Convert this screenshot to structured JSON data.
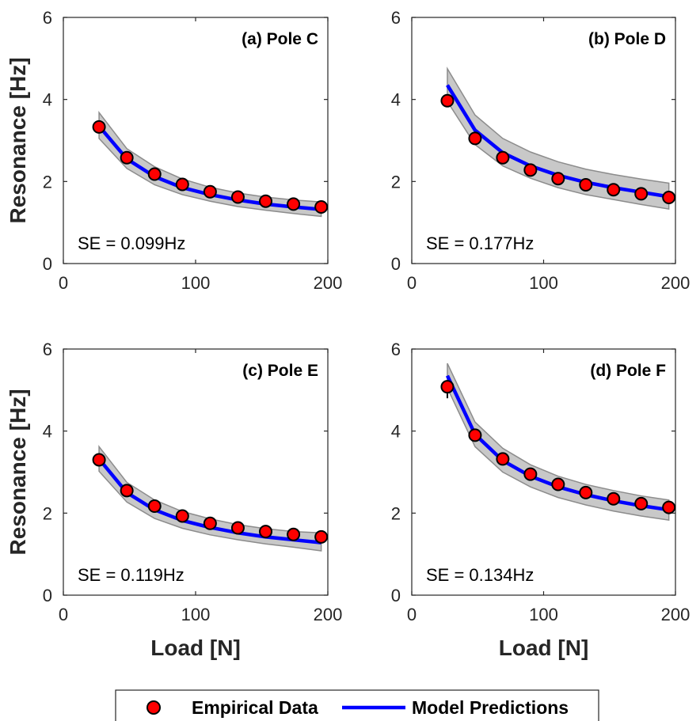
{
  "colors": {
    "empirical_marker": "#ff0000",
    "marker_edge": "#000000",
    "model_line": "#0000ff",
    "band_fill": "#c8c8c8",
    "band_edge": "#8c8c8c"
  },
  "legend": {
    "empirical_label": "Empirical Data",
    "model_label": "Model Predictions",
    "placement": "bottom-center"
  },
  "chart_data": [
    {
      "type": "line",
      "title": "(a) Pole C",
      "annotation": "SE = 0.099Hz",
      "xlabel": "",
      "ylabel": "Resonance [Hz]",
      "xlim": [
        0,
        200
      ],
      "ylim": [
        0,
        6
      ],
      "xticks": [
        "0",
        "100",
        "200"
      ],
      "yticks": [
        "0",
        "2",
        "4",
        "6"
      ],
      "series": [
        {
          "name": "Empirical Data",
          "kind": "markers",
          "x": [
            27,
            48,
            69,
            90,
            111,
            132,
            153,
            174,
            195
          ],
          "y": [
            3.33,
            2.58,
            2.18,
            1.93,
            1.75,
            1.62,
            1.52,
            1.45,
            1.38
          ]
        },
        {
          "name": "Model Predictions",
          "kind": "line",
          "x": [
            27,
            48,
            69,
            90,
            111,
            132,
            153,
            174,
            195
          ],
          "y": [
            3.35,
            2.55,
            2.12,
            1.85,
            1.68,
            1.55,
            1.45,
            1.38,
            1.32
          ],
          "lower": [
            3.05,
            2.32,
            1.92,
            1.68,
            1.52,
            1.39,
            1.3,
            1.22,
            1.15
          ],
          "upper": [
            3.68,
            2.8,
            2.36,
            2.06,
            1.86,
            1.72,
            1.62,
            1.55,
            1.5
          ]
        }
      ]
    },
    {
      "type": "line",
      "title": "(b) Pole D",
      "annotation": "SE = 0.177Hz",
      "xlabel": "",
      "ylabel": "",
      "xlim": [
        0,
        200
      ],
      "ylim": [
        0,
        6
      ],
      "xticks": [
        "0",
        "100",
        "200"
      ],
      "yticks": [
        "0",
        "2",
        "4",
        "6"
      ],
      "series": [
        {
          "name": "Empirical Data",
          "kind": "markers",
          "x": [
            27,
            48,
            69,
            90,
            111,
            132,
            153,
            174,
            195
          ],
          "y": [
            3.97,
            3.05,
            2.58,
            2.28,
            2.07,
            1.92,
            1.8,
            1.7,
            1.61
          ]
        },
        {
          "name": "Model Predictions",
          "kind": "line",
          "x": [
            27,
            48,
            69,
            90,
            111,
            132,
            153,
            174,
            195
          ],
          "y": [
            4.35,
            3.25,
            2.7,
            2.38,
            2.15,
            1.98,
            1.85,
            1.74,
            1.63
          ],
          "lower": [
            3.95,
            2.9,
            2.38,
            2.08,
            1.85,
            1.68,
            1.56,
            1.44,
            1.33
          ],
          "upper": [
            4.75,
            3.62,
            3.05,
            2.72,
            2.48,
            2.3,
            2.17,
            2.06,
            1.96
          ]
        }
      ]
    },
    {
      "type": "line",
      "title": "(c) Pole E",
      "annotation": "SE = 0.119Hz",
      "xlabel": "Load [N]",
      "ylabel": "Resonance [Hz]",
      "xlim": [
        0,
        200
      ],
      "ylim": [
        0,
        6
      ],
      "xticks": [
        "0",
        "100",
        "200"
      ],
      "yticks": [
        "0",
        "2",
        "4",
        "6"
      ],
      "series": [
        {
          "name": "Empirical Data",
          "kind": "markers",
          "x": [
            27,
            48,
            69,
            90,
            111,
            132,
            153,
            174,
            195
          ],
          "y": [
            3.3,
            2.55,
            2.17,
            1.93,
            1.75,
            1.64,
            1.55,
            1.48,
            1.42
          ]
        },
        {
          "name": "Model Predictions",
          "kind": "line",
          "x": [
            27,
            48,
            69,
            90,
            111,
            132,
            153,
            174,
            195
          ],
          "y": [
            3.32,
            2.5,
            2.08,
            1.82,
            1.65,
            1.52,
            1.42,
            1.35,
            1.28
          ],
          "lower": [
            3.02,
            2.27,
            1.87,
            1.63,
            1.47,
            1.35,
            1.25,
            1.17,
            1.08
          ],
          "upper": [
            3.62,
            2.75,
            2.32,
            2.04,
            1.86,
            1.72,
            1.62,
            1.55,
            1.52
          ]
        }
      ]
    },
    {
      "type": "line",
      "title": "(d) Pole F",
      "annotation": "SE = 0.134Hz",
      "xlabel": "Load [N]",
      "ylabel": "",
      "xlim": [
        0,
        200
      ],
      "ylim": [
        0,
        6
      ],
      "xticks": [
        "0",
        "100",
        "200"
      ],
      "yticks": [
        "0",
        "2",
        "4",
        "6"
      ],
      "series": [
        {
          "name": "Empirical Data",
          "kind": "markers",
          "x": [
            27,
            48,
            69,
            90,
            111,
            132,
            153,
            174,
            195
          ],
          "y": [
            5.08,
            3.9,
            3.32,
            2.95,
            2.7,
            2.5,
            2.35,
            2.23,
            2.14
          ]
        },
        {
          "name": "Model Predictions",
          "kind": "line",
          "x": [
            27,
            48,
            69,
            90,
            111,
            132,
            153,
            174,
            195
          ],
          "y": [
            5.35,
            3.92,
            3.28,
            2.9,
            2.64,
            2.45,
            2.3,
            2.18,
            2.08
          ],
          "lower": [
            5.05,
            3.62,
            3.0,
            2.64,
            2.38,
            2.2,
            2.05,
            1.93,
            1.83
          ],
          "upper": [
            5.65,
            4.22,
            3.58,
            3.18,
            2.9,
            2.7,
            2.55,
            2.42,
            2.32
          ]
        }
      ]
    }
  ]
}
